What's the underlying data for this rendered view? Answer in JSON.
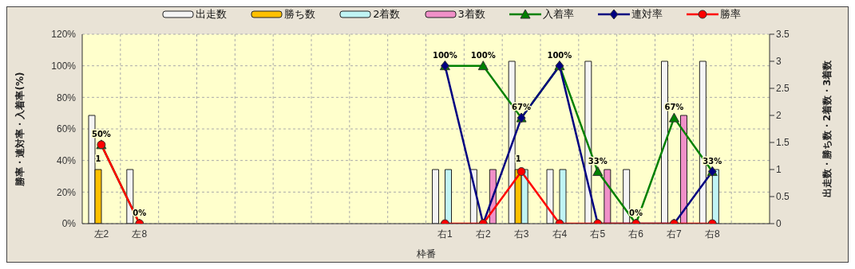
{
  "chart_data": {
    "type": "bar",
    "xlabel": "枠番",
    "ylabel": "勝率・連対率・入着率(%)",
    "y2label": "出走数・勝ち数・2着数・3着数",
    "categories": [
      "左2",
      "左8",
      null,
      null,
      null,
      null,
      null,
      null,
      null,
      "右1",
      "右2",
      "右3",
      "右4",
      "右5",
      "右6",
      "右7",
      "右8",
      null
    ],
    "series": [
      {
        "name": "出走数",
        "axis": "y2",
        "color": "#f4f4f4",
        "values": [
          2,
          1,
          null,
          null,
          null,
          null,
          null,
          null,
          null,
          1,
          1,
          3,
          1,
          3,
          1,
          3,
          3,
          null
        ]
      },
      {
        "name": "勝ち数",
        "axis": "y2",
        "color": "#ffc000",
        "values": [
          1,
          0,
          null,
          null,
          null,
          null,
          null,
          null,
          null,
          0,
          0,
          1,
          0,
          0,
          0,
          0,
          0,
          null
        ],
        "value_labels": [
          "1",
          null,
          null,
          null,
          null,
          null,
          null,
          null,
          null,
          null,
          null,
          "1",
          null,
          null,
          null,
          null,
          null,
          null
        ]
      },
      {
        "name": "2着数",
        "axis": "y2",
        "color": "#c0f4f4",
        "values": [
          0,
          0,
          null,
          null,
          null,
          null,
          null,
          null,
          null,
          1,
          0,
          1,
          1,
          0,
          0,
          0,
          1,
          null
        ]
      },
      {
        "name": "3着数",
        "axis": "y2",
        "color": "#f090c8",
        "values": [
          0,
          0,
          null,
          null,
          null,
          null,
          null,
          null,
          null,
          0,
          1,
          0,
          0,
          1,
          0,
          2,
          0,
          null
        ]
      },
      {
        "name": "入着率",
        "type": "line",
        "color": "#008000",
        "marker": "triangle",
        "values": [
          50,
          0,
          null,
          null,
          null,
          null,
          null,
          null,
          null,
          100,
          100,
          67,
          100,
          33,
          0,
          67,
          33,
          null
        ],
        "value_labels": [
          "50%",
          "0%",
          null,
          null,
          null,
          null,
          null,
          null,
          null,
          "100%",
          "100%",
          "67%",
          "100%",
          "33%",
          "0%",
          "67%",
          "33%",
          null
        ]
      },
      {
        "name": "連対率",
        "type": "line",
        "color": "#000080",
        "marker": "diamond",
        "values": [
          null,
          null,
          null,
          null,
          null,
          null,
          null,
          null,
          null,
          100,
          0,
          67,
          100,
          0,
          0,
          0,
          33,
          null
        ]
      },
      {
        "name": "勝率",
        "type": "line",
        "color": "#ff0000",
        "marker": "circle",
        "values": [
          50,
          0,
          null,
          null,
          null,
          null,
          null,
          null,
          null,
          0,
          0,
          33,
          0,
          0,
          0,
          0,
          0,
          null
        ]
      }
    ],
    "ylim": [
      0,
      120
    ],
    "yticks": [
      {
        "value": 0,
        "label": "0%"
      },
      {
        "value": 20,
        "label": "20%"
      },
      {
        "value": 40,
        "label": "40%"
      },
      {
        "value": 60,
        "label": "60%"
      },
      {
        "value": 80,
        "label": "80%"
      },
      {
        "value": 100,
        "label": "100%"
      },
      {
        "value": 120,
        "label": "120%"
      }
    ],
    "y2lim": [
      0,
      3.5
    ],
    "y2ticks": [
      0,
      0.5,
      1,
      1.5,
      2,
      2.5,
      3,
      3.5
    ],
    "grid": true,
    "legend": "top",
    "line_style": "solid"
  }
}
